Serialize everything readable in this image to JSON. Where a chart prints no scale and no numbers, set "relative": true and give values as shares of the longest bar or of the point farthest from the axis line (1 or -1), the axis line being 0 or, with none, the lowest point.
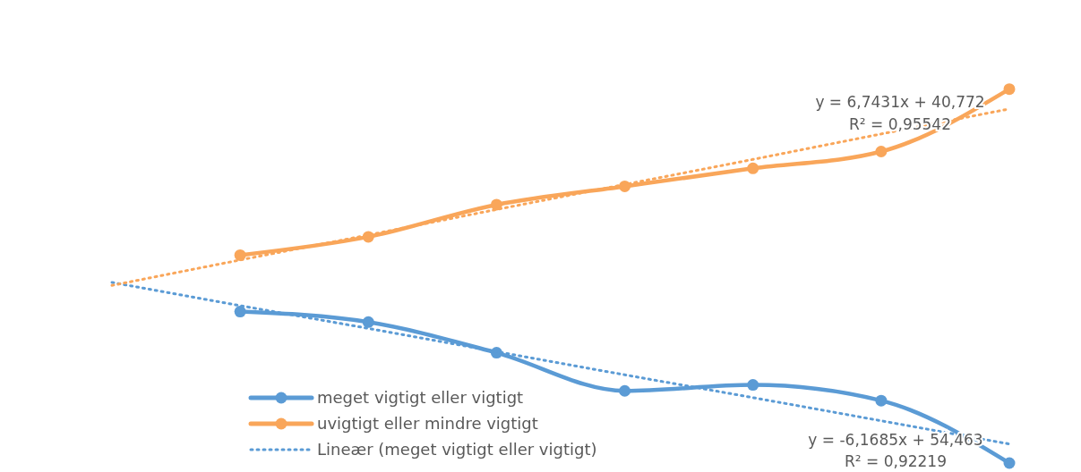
{
  "chart_data": {
    "type": "line",
    "relative": true,
    "categories": [
      null,
      null,
      null,
      null,
      null,
      null,
      null,
      null
    ],
    "legend": "bottom left",
    "marker": "circle",
    "series": [
      {
        "name": "meget vigtigt eller vigtigt",
        "color": "#5b9bd5",
        "values": [
          null,
          0.405,
          0.377,
          0.295,
          0.193,
          0.209,
          0.167,
          0.0
        ]
      },
      {
        "name": "uvigtigt eller mindre vigtigt",
        "color": "#f9a65a",
        "values": [
          null,
          0.556,
          0.605,
          0.691,
          0.74,
          0.788,
          0.833,
          1
        ]
      },
      {
        "name": "Lineær (meget vigtigt eller vigtigt)",
        "color": "#5b9bd5",
        "line_style": "dotted",
        "marker": "none",
        "values": [
          0.483,
          0.421,
          0.36,
          0.298,
          0.236,
          0.175,
          0.113,
          0.051
        ]
      },
      {
        "color": "#f9a65a",
        "line_style": "dotted",
        "marker": "none",
        "values": [
          0.475,
          0.543,
          0.61,
          0.678,
          0.745,
          0.812,
          0.88,
          0.947
        ]
      }
    ],
    "annotations": [
      "y = 6,7431x + 40,772",
      "R² = 0,95542",
      "y = -6,1685x + 54,463",
      "R² = 0,92219"
    ]
  }
}
